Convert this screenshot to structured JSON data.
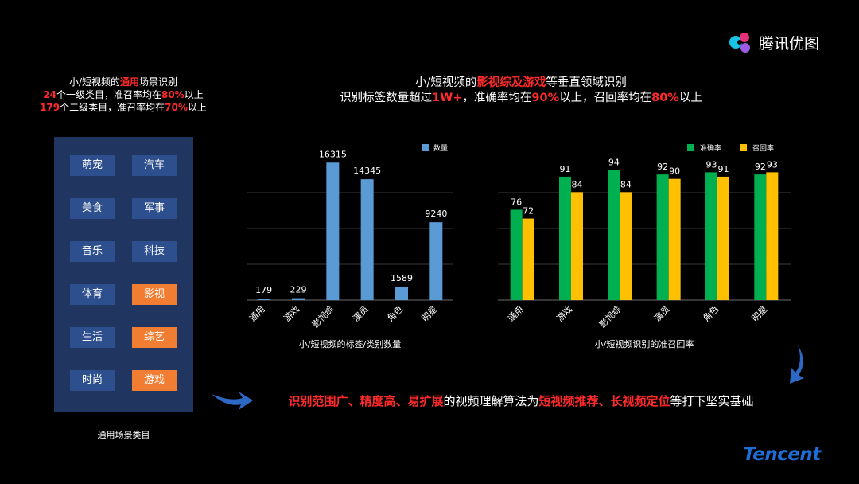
{
  "brand": {
    "name": "腾讯优图",
    "footer": "Tencent"
  },
  "left": {
    "title": "小/短视频的",
    "title_hl": "通用",
    "title_tail": "场景识别",
    "line2_num": "24",
    "line2_mid": "个一级类目，准召率均在",
    "line2_pct": "80%",
    "line2_tail": "以上",
    "line3_num": "179",
    "line3_mid": "个二级类目，准召率均在",
    "line3_pct": "70%",
    "line3_tail": "以上",
    "categories": [
      {
        "label": "萌宠",
        "highlight": false
      },
      {
        "label": "汽车",
        "highlight": false
      },
      {
        "label": "美食",
        "highlight": false
      },
      {
        "label": "军事",
        "highlight": false
      },
      {
        "label": "音乐",
        "highlight": false
      },
      {
        "label": "科技",
        "highlight": false
      },
      {
        "label": "体育",
        "highlight": false
      },
      {
        "label": "影视",
        "highlight": true
      },
      {
        "label": "生活",
        "highlight": false
      },
      {
        "label": "综艺",
        "highlight": true
      },
      {
        "label": "时尚",
        "highlight": false
      },
      {
        "label": "游戏",
        "highlight": true
      }
    ],
    "caption": "通用场景类目"
  },
  "main": {
    "t1_pre": "小/短视频的",
    "t1_hl": "影视综及游戏",
    "t1_post": "等垂直领域识别",
    "t2_a": "识别标签数量超过",
    "t2_b": "1W+",
    "t2_c": "，准确率均在",
    "t2_d": "90%",
    "t2_e": "以上，召回率均在",
    "t2_f": "80%",
    "t2_g": "以上"
  },
  "bottom": {
    "hl1": "识别范围广、精度高、易扩展",
    "mid": "的视频理解算法为",
    "hl2": "短视频推荐、长视频定位",
    "tail": "等打下坚实基础"
  },
  "colors": {
    "blue_bar": "#5b9bd5",
    "green_bar": "#00b050",
    "yellow_bar": "#ffc000",
    "panel": "#203660",
    "cat_btn": "#2d4f8e",
    "highlight": "#f07d32",
    "red_text": "#ff2a2a"
  },
  "chart_data": [
    {
      "type": "bar",
      "title": "小/短视频的标签/类别数量",
      "categories": [
        "通用",
        "游戏",
        "影视综",
        "演员",
        "角色",
        "明星"
      ],
      "series": [
        {
          "name": "数量",
          "values": [
            179,
            229,
            16315,
            14345,
            1589,
            9240
          ]
        }
      ],
      "legend": "top-right",
      "grid": true
    },
    {
      "type": "bar",
      "title": "小/短视频识别的准召回率",
      "categories": [
        "通用",
        "游戏",
        "影视综",
        "演员",
        "角色",
        "明星"
      ],
      "series": [
        {
          "name": "准确率",
          "values": [
            76,
            91,
            94,
            92,
            93,
            92
          ]
        },
        {
          "name": "召回率",
          "values": [
            72,
            84,
            84,
            90,
            91,
            93
          ]
        }
      ],
      "legend": "top-right",
      "grid": true
    }
  ]
}
